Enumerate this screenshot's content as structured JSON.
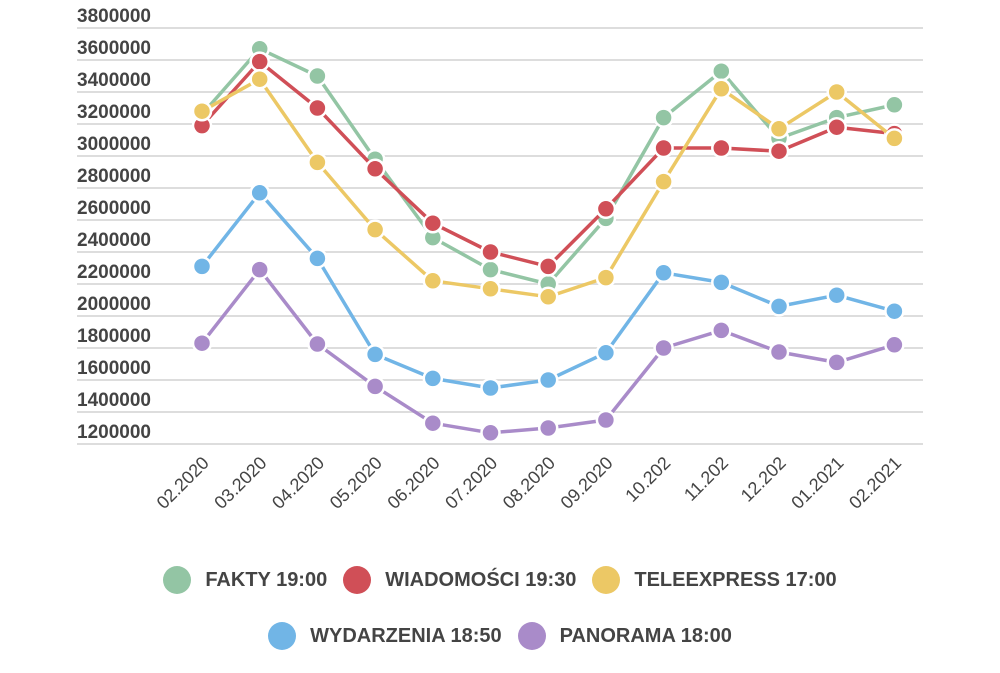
{
  "chart_data": {
    "type": "line",
    "title": "",
    "xlabel": "",
    "ylabel": "",
    "categories": [
      "02.2020",
      "03.2020",
      "04.2020",
      "05.2020",
      "06.2020",
      "07.2020",
      "08.2020",
      "09.2020",
      "10.202",
      "11.202",
      "12.202",
      "01.2021",
      "02.2021"
    ],
    "ylim": [
      1200000,
      3800000
    ],
    "yticks": [
      3800000,
      3600000,
      3400000,
      3200000,
      3000000,
      2800000,
      2600000,
      2400000,
      2200000,
      2000000,
      1800000,
      1600000,
      1400000,
      1200000
    ],
    "ytick_labels": [
      "3800000",
      "3600000",
      "3400000",
      "3200000",
      "3000000",
      "2800000",
      "2600000",
      "2400000",
      "2200000",
      "2000000",
      "1800000",
      "1600000",
      "1400000",
      "1200000"
    ],
    "grid": true,
    "legend_position": "bottom",
    "series": [
      {
        "name": "FAKTY 19:00",
        "color": "#93c5a4",
        "values": [
          3260000,
          3670000,
          3500000,
          2980000,
          2490000,
          2290000,
          2200000,
          2610000,
          3240000,
          3530000,
          3110000,
          3240000,
          3320000
        ]
      },
      {
        "name": "WIADOMOŚCI 19:30",
        "color": "#d04f57",
        "values": [
          3190000,
          3590000,
          3300000,
          2920000,
          2580000,
          2400000,
          2310000,
          2670000,
          3050000,
          3050000,
          3030000,
          3180000,
          3140000
        ]
      },
      {
        "name": "TELEEXPRESS 17:00",
        "color": "#ecc865",
        "values": [
          3280000,
          3480000,
          2960000,
          2540000,
          2220000,
          2170000,
          2120000,
          2240000,
          2840000,
          3420000,
          3170000,
          3400000,
          3110000
        ]
      },
      {
        "name": "WYDARZENIA 18:50",
        "color": "#71b5e6",
        "values": [
          2310000,
          2770000,
          2360000,
          1760000,
          1610000,
          1550000,
          1600000,
          1770000,
          2270000,
          2210000,
          2060000,
          2130000,
          2030000
        ]
      },
      {
        "name": "PANORAMA 18:00",
        "color": "#a98bc9",
        "values": [
          1830000,
          2290000,
          1825000,
          1560000,
          1330000,
          1270000,
          1300000,
          1350000,
          1800000,
          1910000,
          1775000,
          1710000,
          1820000
        ]
      }
    ]
  },
  "legend": {
    "row1": [
      0,
      1,
      2
    ],
    "row2": [
      3,
      4
    ]
  }
}
